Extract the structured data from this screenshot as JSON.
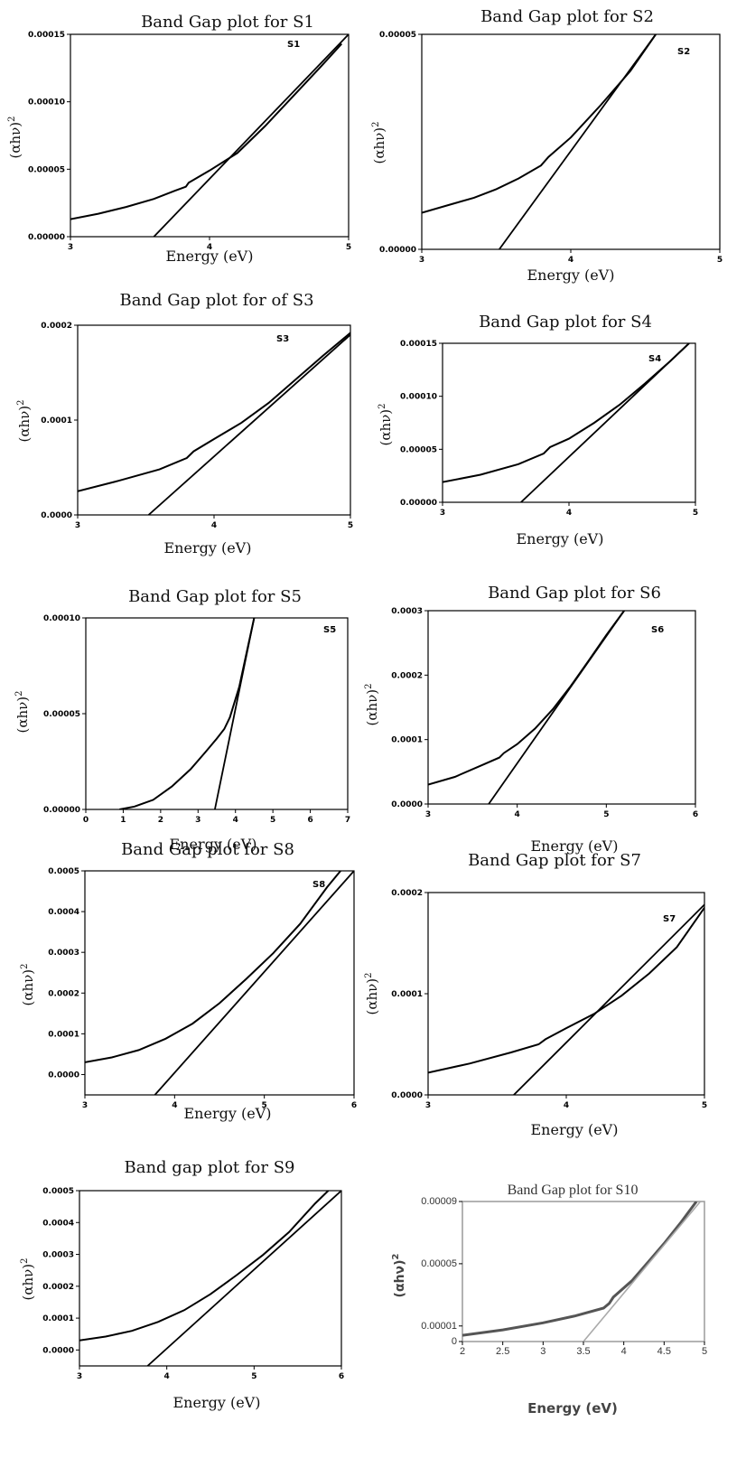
{
  "chart_data": [
    {
      "id": "S1",
      "type": "line",
      "title": "Band Gap plot for S1",
      "xlabel": "Energy (eV)",
      "ylabel": "(αhν)",
      "panel_label": "S1",
      "xlim": [
        3,
        5
      ],
      "ylim": [
        0,
        0.00015
      ],
      "xticks": [
        3,
        4,
        5
      ],
      "xtick_labels": [
        "3",
        "4",
        "5"
      ],
      "yticks": [
        0,
        5e-05,
        0.0001,
        0.00015
      ],
      "ytick_labels": [
        "0.00000",
        "0.00005",
        "0.00010",
        "0.00015"
      ],
      "series": [
        {
          "role": "data",
          "x": [
            3.0,
            3.2,
            3.4,
            3.6,
            3.75,
            3.83,
            3.85,
            4.0,
            4.2,
            4.4,
            4.6,
            4.8,
            4.95
          ],
          "y": [
            1.3e-05,
            1.7e-05,
            2.2e-05,
            2.8e-05,
            3.4e-05,
            3.7e-05,
            4e-05,
            4.9e-05,
            6.2e-05,
            8.2e-05,
            0.000104,
            0.000126,
            0.000143
          ]
        },
        {
          "role": "tangent",
          "x": [
            3.6,
            5.0
          ],
          "y": [
            0,
            0.00015
          ]
        }
      ]
    },
    {
      "id": "S2",
      "type": "line",
      "title": "Band Gap plot for S2",
      "xlabel": "Energy (eV)",
      "ylabel": "(αhν)",
      "panel_label": "S2",
      "xlim": [
        3,
        5
      ],
      "ylim": [
        0,
        5e-05
      ],
      "xticks": [
        3,
        4,
        5
      ],
      "xtick_labels": [
        "3",
        "4",
        "5"
      ],
      "yticks": [
        0,
        5e-05
      ],
      "ytick_labels": [
        "0.00000",
        "0.00005"
      ],
      "series": [
        {
          "role": "data",
          "x": [
            3.0,
            3.2,
            3.35,
            3.5,
            3.65,
            3.8,
            3.85,
            4.0,
            4.2,
            4.4,
            4.57
          ],
          "y": [
            8.5e-06,
            1.05e-05,
            1.2e-05,
            1.4e-05,
            1.65e-05,
            1.95e-05,
            2.15e-05,
            2.6e-05,
            3.35e-05,
            4.15e-05,
            5e-05
          ]
        },
        {
          "role": "tangent",
          "x": [
            3.52,
            4.57
          ],
          "y": [
            0,
            5e-05
          ]
        }
      ]
    },
    {
      "id": "S3",
      "type": "line",
      "title": "Band Gap plot for of S3",
      "xlabel": "Energy (eV)",
      "ylabel": "(αhν)",
      "panel_label": "S3",
      "xlim": [
        3,
        5
      ],
      "ylim": [
        0,
        0.0002
      ],
      "xticks": [
        3,
        4,
        5
      ],
      "xtick_labels": [
        "3",
        "4",
        "5"
      ],
      "yticks": [
        0,
        0.0001,
        0.0002
      ],
      "ytick_labels": [
        "0.0000",
        "0.0001",
        "0.0002"
      ],
      "series": [
        {
          "role": "data",
          "x": [
            3.0,
            3.3,
            3.6,
            3.8,
            3.85,
            4.0,
            4.2,
            4.4,
            4.6,
            4.8,
            5.0
          ],
          "y": [
            2.5e-05,
            3.6e-05,
            4.8e-05,
            6e-05,
            6.7e-05,
            8e-05,
            9.7e-05,
            0.000118,
            0.000143,
            0.000168,
            0.000192
          ]
        },
        {
          "role": "tangent",
          "x": [
            3.52,
            5.0
          ],
          "y": [
            0,
            0.00019
          ]
        }
      ]
    },
    {
      "id": "S4",
      "type": "line",
      "title": "Band Gap plot for S4",
      "xlabel": "Energy (eV)",
      "ylabel": "(αhν)",
      "panel_label": "S4",
      "xlim": [
        3,
        5
      ],
      "ylim": [
        0,
        0.00015
      ],
      "xticks": [
        3,
        4,
        5
      ],
      "xtick_labels": [
        "3",
        "4",
        "5"
      ],
      "yticks": [
        0,
        5e-05,
        0.0001,
        0.00015
      ],
      "ytick_labels": [
        "0.00000",
        "0.00005",
        "0.00010",
        "0.00015"
      ],
      "series": [
        {
          "role": "data",
          "x": [
            3.0,
            3.3,
            3.6,
            3.8,
            3.85,
            4.0,
            4.2,
            4.4,
            4.6,
            4.8,
            4.95
          ],
          "y": [
            1.9e-05,
            2.6e-05,
            3.6e-05,
            4.6e-05,
            5.2e-05,
            6e-05,
            7.5e-05,
            9.2e-05,
            0.000112,
            0.000133,
            0.00015
          ]
        },
        {
          "role": "tangent",
          "x": [
            3.62,
            4.95
          ],
          "y": [
            0,
            0.00015
          ]
        }
      ]
    },
    {
      "id": "S5",
      "type": "line",
      "title": "Band Gap plot for S5",
      "xlabel": "Energy (eV)",
      "ylabel": "(αhν)",
      "panel_label": "S5",
      "xlim": [
        0,
        7
      ],
      "ylim": [
        0,
        0.0001
      ],
      "xticks": [
        0,
        1,
        2,
        3,
        4,
        5,
        6,
        7
      ],
      "xtick_labels": [
        "0",
        "1",
        "2",
        "3",
        "4",
        "5",
        "6",
        "7"
      ],
      "yticks": [
        0,
        5e-05,
        0.0001
      ],
      "ytick_labels": [
        "0.00000",
        "0.00005",
        "0.00010"
      ],
      "series": [
        {
          "role": "data",
          "x": [
            0.9,
            1.3,
            1.8,
            2.3,
            2.8,
            3.2,
            3.5,
            3.7,
            3.85,
            4.1,
            4.3,
            4.5
          ],
          "y": [
            0,
            1.5e-06,
            5e-06,
            1.2e-05,
            2.1e-05,
            3e-05,
            3.7e-05,
            4.2e-05,
            4.8e-05,
            6.4e-05,
            8.2e-05,
            0.0001
          ]
        },
        {
          "role": "tangent",
          "x": [
            3.45,
            4.5
          ],
          "y": [
            0,
            0.0001
          ]
        }
      ]
    },
    {
      "id": "S6",
      "type": "line",
      "title": "Band Gap plot for S6",
      "xlabel": "Energy (eV)",
      "ylabel": "(αhν)",
      "panel_label": "S6",
      "xlim": [
        3,
        6
      ],
      "ylim": [
        0,
        0.0003
      ],
      "xticks": [
        3,
        4,
        5,
        6
      ],
      "xtick_labels": [
        "3",
        "4",
        "5",
        "6"
      ],
      "yticks": [
        0,
        0.0001,
        0.0002,
        0.0003
      ],
      "ytick_labels": [
        "0.0000",
        "0.0001",
        "0.0002",
        "0.0003"
      ],
      "series": [
        {
          "role": "data",
          "x": [
            3.0,
            3.3,
            3.6,
            3.8,
            3.85,
            4.0,
            4.2,
            4.4,
            4.6,
            4.8,
            5.0,
            5.2
          ],
          "y": [
            3e-05,
            4.2e-05,
            6e-05,
            7.2e-05,
            7.9e-05,
            9.3e-05,
            0.000117,
            0.000147,
            0.000183,
            0.000222,
            0.000262,
            0.0003
          ]
        },
        {
          "role": "tangent",
          "x": [
            3.68,
            5.2
          ],
          "y": [
            0,
            0.0003
          ]
        }
      ]
    },
    {
      "id": "S8",
      "type": "line",
      "title": "Band Gap plot for S8",
      "xlabel": "Energy (eV)",
      "ylabel": "(αhν)",
      "panel_label": "S8",
      "xlim": [
        3,
        6
      ],
      "ylim": [
        -5e-05,
        0.0005
      ],
      "xticks": [
        3,
        4,
        5,
        6
      ],
      "xtick_labels": [
        "3",
        "4",
        "5",
        "6"
      ],
      "yticks": [
        0,
        0.0001,
        0.0002,
        0.0003,
        0.0004,
        0.0005
      ],
      "ytick_labels": [
        "0.0000",
        "0.0001",
        "0.0002",
        "0.0003",
        "0.0004",
        "0.0005"
      ],
      "series": [
        {
          "role": "data",
          "x": [
            3.0,
            3.3,
            3.6,
            3.9,
            4.2,
            4.5,
            4.8,
            5.1,
            5.4,
            5.7,
            5.85
          ],
          "y": [
            3e-05,
            4.2e-05,
            6e-05,
            8.8e-05,
            0.000125,
            0.000175,
            0.000235,
            0.000298,
            0.00037,
            0.00046,
            0.0005
          ]
        },
        {
          "role": "tangent",
          "x": [
            3.78,
            6.0
          ],
          "y": [
            -5e-05,
            0.0005
          ]
        }
      ]
    },
    {
      "id": "S7",
      "type": "line",
      "title": "Band Gap plot for S7",
      "xlabel": "Energy (eV)",
      "ylabel": "(αhν)",
      "panel_label": "S7",
      "xlim": [
        3,
        5
      ],
      "ylim": [
        0,
        0.0002
      ],
      "xticks": [
        3,
        4,
        5
      ],
      "xtick_labels": [
        "3",
        "4",
        "5"
      ],
      "yticks": [
        0,
        0.0001,
        0.0002
      ],
      "ytick_labels": [
        "0.0000",
        "0.0001",
        "0.0002"
      ],
      "series": [
        {
          "role": "data",
          "x": [
            3.0,
            3.3,
            3.6,
            3.8,
            3.85,
            4.0,
            4.2,
            4.4,
            4.6,
            4.8,
            5.0
          ],
          "y": [
            2.2e-05,
            3.1e-05,
            4.2e-05,
            5e-05,
            5.5e-05,
            6.6e-05,
            8e-05,
            9.8e-05,
            0.00012,
            0.000146,
            0.000185
          ]
        },
        {
          "role": "tangent",
          "x": [
            3.62,
            5.0
          ],
          "y": [
            0,
            0.000188
          ]
        }
      ]
    },
    {
      "id": "S9",
      "type": "line",
      "title": "Band gap plot for S9",
      "xlabel": "Energy (eV)",
      "ylabel": "(αhν)",
      "panel_label": "",
      "xlim": [
        3,
        6
      ],
      "ylim": [
        -5e-05,
        0.0005
      ],
      "xticks": [
        3,
        4,
        5,
        6
      ],
      "xtick_labels": [
        "3",
        "4",
        "5",
        "6"
      ],
      "yticks": [
        0,
        0.0001,
        0.0002,
        0.0003,
        0.0004,
        0.0005
      ],
      "ytick_labels": [
        "0.0000",
        "0.0001",
        "0.0002",
        "0.0003",
        "0.0004",
        "0.0005"
      ],
      "series": [
        {
          "role": "data",
          "x": [
            3.0,
            3.3,
            3.6,
            3.9,
            4.2,
            4.5,
            4.8,
            5.1,
            5.4,
            5.7,
            5.85
          ],
          "y": [
            3e-05,
            4.2e-05,
            6e-05,
            8.8e-05,
            0.000125,
            0.000175,
            0.000235,
            0.000298,
            0.00037,
            0.00046,
            0.0005
          ]
        },
        {
          "role": "tangent",
          "x": [
            3.78,
            6.0
          ],
          "y": [
            -5e-05,
            0.0005
          ]
        }
      ]
    },
    {
      "id": "S10",
      "type": "line",
      "title": "Band Gap plot for S10",
      "xlabel": "Energy (eV)",
      "ylabel": "(αhν)",
      "panel_label": "",
      "xlim": [
        2,
        5
      ],
      "ylim": [
        0,
        9e-05
      ],
      "xticks": [
        2,
        2.5,
        3,
        3.5,
        4,
        4.5,
        5
      ],
      "xtick_labels": [
        "2",
        "2.5",
        "3",
        "3.5",
        "4",
        "4.5",
        "5"
      ],
      "yticks": [
        0,
        1e-05,
        5e-05,
        9e-05
      ],
      "ytick_labels": [
        "0",
        "0.00001",
        "0.00005",
        "0.00009"
      ],
      "series": [
        {
          "role": "data",
          "x": [
            2.0,
            2.5,
            3.0,
            3.4,
            3.75,
            3.82,
            3.87,
            4.1,
            4.3,
            4.5,
            4.7,
            4.9
          ],
          "y": [
            4e-06,
            7.5e-06,
            1.2e-05,
            1.65e-05,
            2.15e-05,
            2.45e-05,
            2.85e-05,
            3.9e-05,
            5.1e-05,
            6.3e-05,
            7.6e-05,
            9e-05
          ]
        },
        {
          "role": "tangent",
          "x": [
            3.5,
            4.95
          ],
          "y": [
            0,
            9e-05
          ]
        }
      ]
    }
  ]
}
